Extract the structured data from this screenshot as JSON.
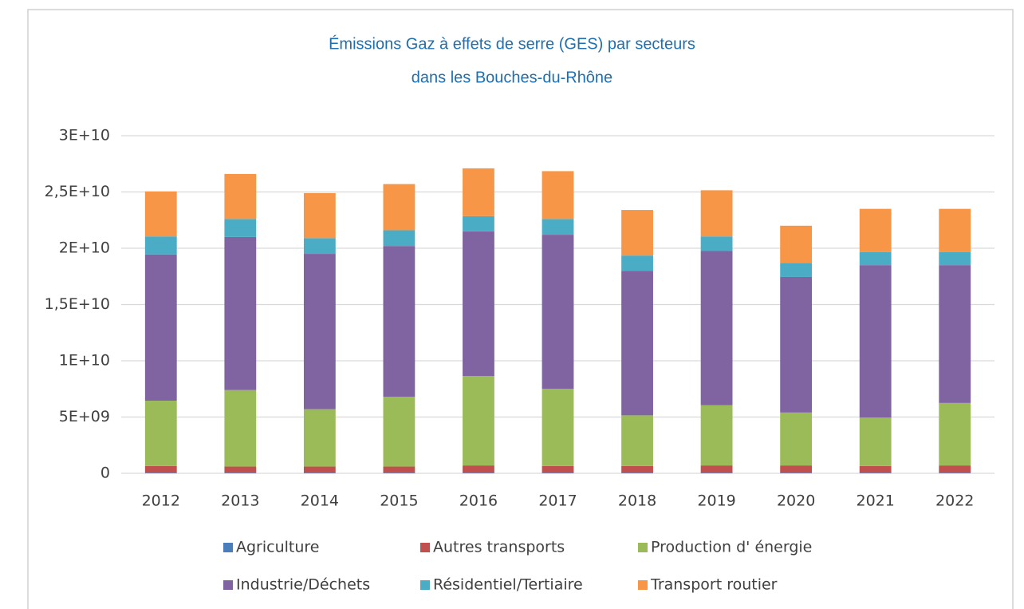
{
  "chart_data": {
    "type": "stacked_bar",
    "title": [
      "Émissions Gaz à effets de serre (GES) par secteurs",
      "dans les Bouches-du-Rhône"
    ],
    "categories": [
      "2012",
      "2013",
      "2014",
      "2015",
      "2016",
      "2017",
      "2018",
      "2019",
      "2020",
      "2021",
      "2022"
    ],
    "series": [
      {
        "name": "Agriculture",
        "color": "#4a7ebb",
        "values": [
          50000000,
          50000000,
          50000000,
          50000000,
          50000000,
          50000000,
          50000000,
          50000000,
          50000000,
          50000000,
          50000000
        ]
      },
      {
        "name": "Autres transports",
        "color": "#c0504d",
        "values": [
          600000000,
          550000000,
          550000000,
          550000000,
          650000000,
          600000000,
          600000000,
          650000000,
          650000000,
          600000000,
          650000000
        ]
      },
      {
        "name": "Production d' énergie",
        "color": "#9bbb59",
        "values": [
          5800000000,
          6800000000,
          5100000000,
          6200000000,
          7950000000,
          6850000000,
          4500000000,
          5350000000,
          4700000000,
          4300000000,
          5550000000
        ]
      },
      {
        "name": "Industrie/Déchets",
        "color": "#8064a2",
        "values": [
          13000000000,
          13600000000,
          13800000000,
          13400000000,
          12850000000,
          13700000000,
          12850000000,
          13700000000,
          12050000000,
          13550000000,
          12250000000
        ]
      },
      {
        "name": "Résidentiel/Tertiaire",
        "color": "#4bacc6",
        "values": [
          1600000000,
          1600000000,
          1400000000,
          1400000000,
          1350000000,
          1400000000,
          1350000000,
          1300000000,
          1250000000,
          1150000000,
          1150000000
        ]
      },
      {
        "name": "Transport routier",
        "color": "#f79646",
        "values": [
          4000000000,
          4000000000,
          4000000000,
          4100000000,
          4250000000,
          4250000000,
          4050000000,
          4100000000,
          3300000000,
          3850000000,
          3850000000
        ]
      }
    ],
    "ylim": [
      0,
      30000000000
    ],
    "yticks": [
      0,
      {
        "value": 5000000000,
        "label": "5E+09"
      },
      {
        "value": 10000000000,
        "label": "1E+10"
      },
      {
        "value": 15000000000,
        "label": "1,5E+10"
      },
      {
        "value": 20000000000,
        "label": "2E+10"
      },
      {
        "value": 25000000000,
        "label": "2,5E+10"
      },
      {
        "value": 30000000000,
        "label": "3E+10"
      }
    ],
    "grid": true,
    "legend": "bottom"
  }
}
